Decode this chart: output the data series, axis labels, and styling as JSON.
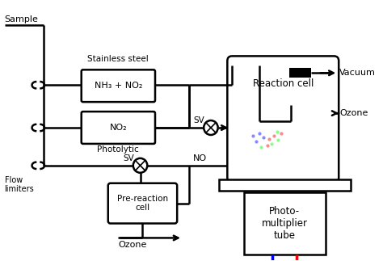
{
  "background_color": "#ffffff",
  "fig_width": 4.74,
  "fig_height": 3.23,
  "dpi": 100,
  "labels": {
    "sample": "Sample",
    "stainless_steel": "Stainless steel",
    "nh3_no2": "NH₃ + NO₂",
    "no2": "NO₂",
    "photolytic": "Photolytic",
    "flow_limiters": "Flow\nlimiters",
    "sv_upper": "SV",
    "sv_lower": "SV",
    "no": "NO",
    "reaction_cell": "Reaction cell",
    "vacuum": "Vacuum",
    "ozone_right": "Ozone",
    "pre_reaction_cell": "Pre-reaction\ncell",
    "ozone_bottom": "Ozone",
    "photo_tube": "Photo-\nmultiplier\ntube"
  },
  "colors": {
    "black": "#000000",
    "blue": "#0000ff",
    "red": "#ff0000",
    "white": "#ffffff"
  },
  "lw_thin": 1.2,
  "lw_thick": 1.8
}
